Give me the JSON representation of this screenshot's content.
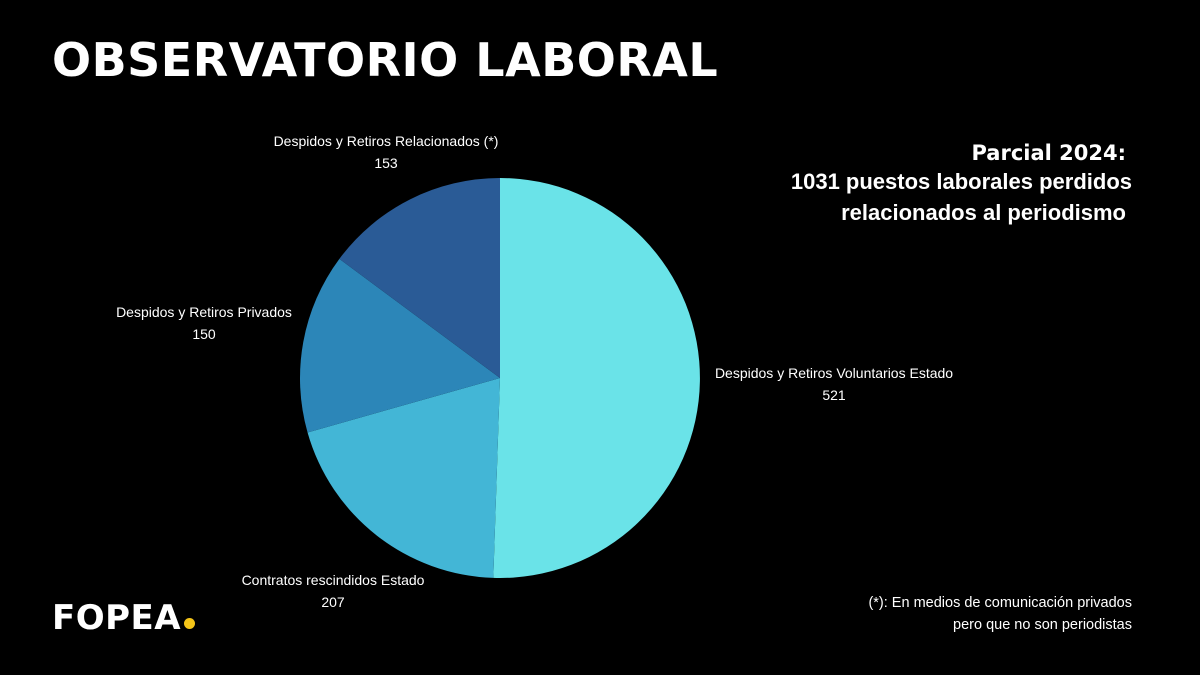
{
  "header": {
    "title": "OBSERVATORIO LABORAL"
  },
  "summary": {
    "title": "Parcial 2024:",
    "line1": "1031 puestos laborales perdidos",
    "line2": "relacionados al periodismo"
  },
  "chart_data": {
    "type": "pie",
    "title": "",
    "categories": [
      "Despidos y Retiros Voluntarios Estado",
      "Contratos rescindidos Estado",
      "Despidos y Retiros Privados",
      "Despidos y Retiros Relacionados (*)"
    ],
    "values": [
      521,
      207,
      150,
      153
    ],
    "colors": [
      "#6ae3e8",
      "#43b6d6",
      "#2c86b8",
      "#2a5b96"
    ],
    "start_angle": "12 o'clock",
    "direction": "clockwise",
    "legend": "none (labels beside slices)"
  },
  "brand": {
    "name": "FOPEA",
    "dot_color": "#f5c518"
  },
  "footnote": {
    "line1": "(*): En medios de comunicación privados",
    "line2": "pero que no son periodistas"
  }
}
